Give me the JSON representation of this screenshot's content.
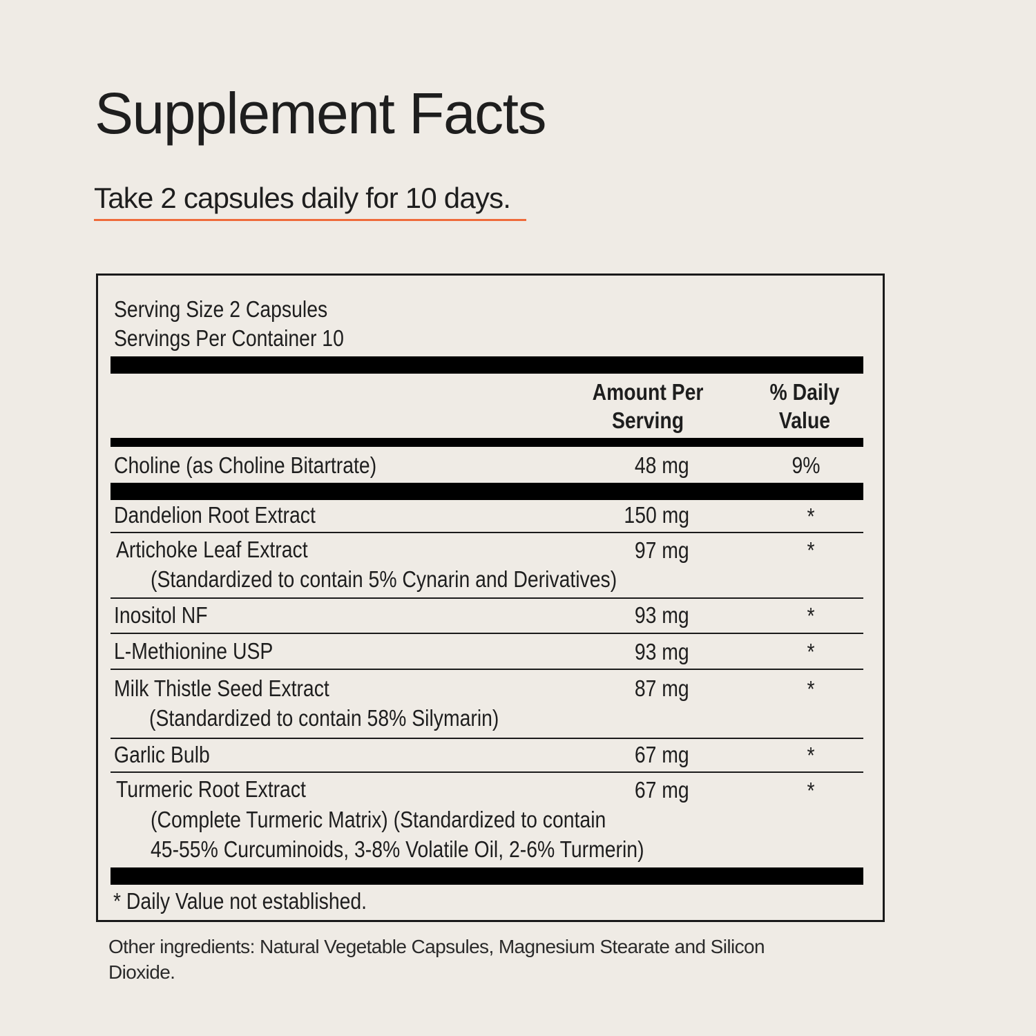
{
  "title": "Supplement Facts",
  "directions": "Take 2 capsules daily for 10 days.",
  "colors": {
    "background": "#efebe5",
    "accent_underline": "#ef6a3a",
    "text": "#1e1e1e",
    "bars": "#000000"
  },
  "serving": {
    "size": "Serving Size 2 Capsules",
    "per_container": "Servings Per Container  10"
  },
  "headers": {
    "amount_line1": "Amount Per",
    "amount_line2": "Serving",
    "dv_line1": "% Daily",
    "dv_line2": "Value"
  },
  "rows": [
    {
      "name": "Choline (as Choline Bitartrate)",
      "amount": "48 mg",
      "dv": "9%"
    },
    {
      "name": "Dandelion Root Extract",
      "amount": "150 mg",
      "dv": "*"
    },
    {
      "name": "Artichoke Leaf Extract",
      "sub1": "(Standardized to contain 5% Cynarin and Derivatives)",
      "amount": "97 mg",
      "dv": "*"
    },
    {
      "name": "Inositol NF",
      "amount": "93 mg",
      "dv": "*"
    },
    {
      "name": "L-Methionine USP",
      "amount": "93 mg",
      "dv": "*"
    },
    {
      "name": "Milk Thistle Seed Extract",
      "sub1": "(Standardized to contain 58% Silymarin)",
      "amount": "87 mg",
      "dv": "*"
    },
    {
      "name": "Garlic Bulb",
      "amount": "67 mg",
      "dv": "*"
    },
    {
      "name": "Turmeric Root Extract",
      "sub1": "(Complete Turmeric Matrix) (Standardized to contain",
      "sub2": "45-55% Curcuminoids, 3-8% Volatile Oil, 2-6% Turmerin)",
      "amount": "67 mg",
      "dv": "*"
    }
  ],
  "footnote": "* Daily Value not established.",
  "other_ingredients": "Other ingredients: Natural Vegetable Capsules, Magnesium Stearate and Silicon Dioxide."
}
